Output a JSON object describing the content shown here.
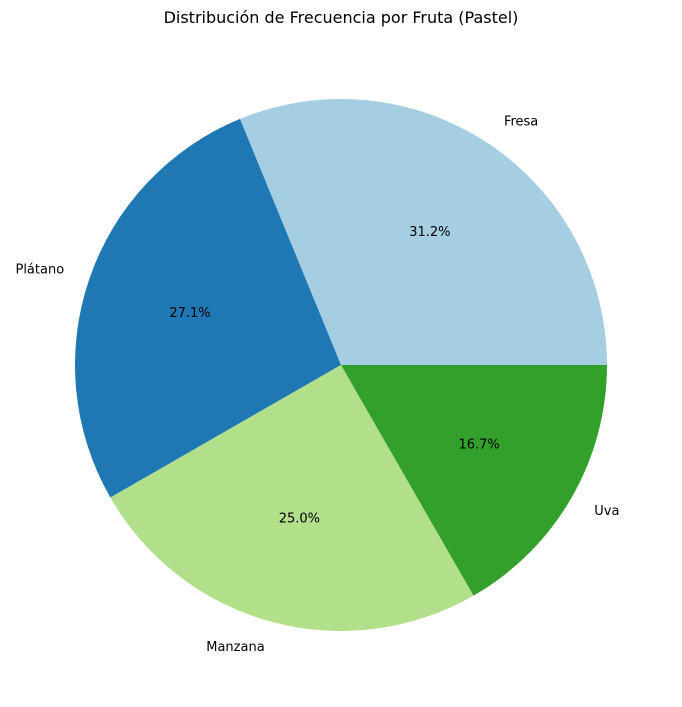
{
  "chart_data": {
    "type": "pie",
    "title": "Distribución de Frecuencia por Fruta (Pastel)",
    "categories": [
      "Fresa",
      "Plátano",
      "Manzana",
      "Uva"
    ],
    "values": [
      31.2,
      27.1,
      25.0,
      16.7
    ],
    "value_labels": [
      "31.2%",
      "27.1%",
      "25.0%",
      "16.7%"
    ],
    "colors": [
      "#a6cee3",
      "#1f78b4",
      "#b2df8a",
      "#33a02c"
    ],
    "start_angle_deg": 0,
    "direction": "counterclockwise",
    "legend": "none"
  }
}
